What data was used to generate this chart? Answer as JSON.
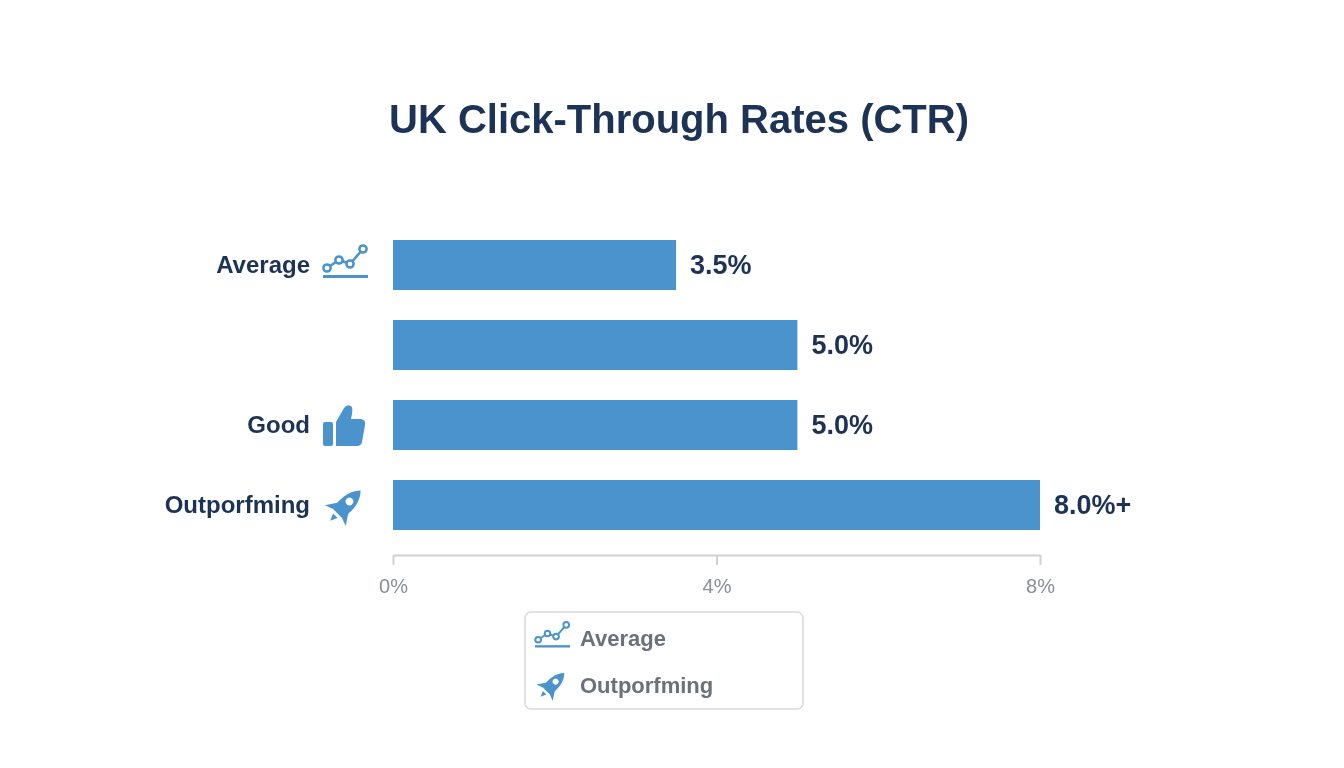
{
  "chart_data": {
    "type": "bar",
    "title": "UK Click-Through Rates (CTR)",
    "orientation": "horizontal",
    "categories": [
      "Average",
      null,
      "Good",
      "Outporfming"
    ],
    "values": [
      3.5,
      5.0,
      5.0,
      8.0
    ],
    "color": "#4a93cd",
    "value_labels": [
      "3.5%",
      "5.0%",
      "5.0%",
      "8.0%+"
    ],
    "xlim": [
      0,
      8
    ],
    "xticks": [
      {
        "value": 0,
        "label": "0%"
      },
      {
        "value": 4,
        "label": "4%"
      },
      {
        "value": 8,
        "label": "8%"
      }
    ],
    "annotations": [
      "Average",
      "Outporfming"
    ]
  }
}
